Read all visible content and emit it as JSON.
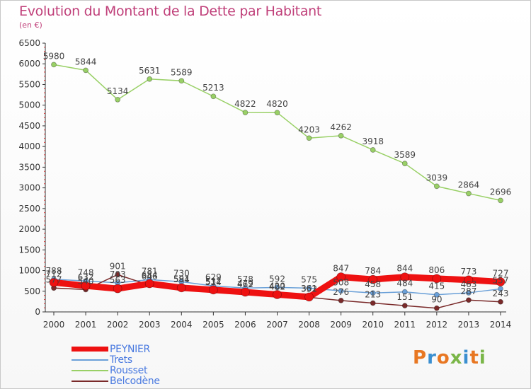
{
  "header": {
    "title": "Evolution du Montant de la Dette par Habitant",
    "subtitle": "(en €)"
  },
  "logo": {
    "letters": [
      "P",
      "r",
      "o",
      "x",
      "i",
      "t",
      "i"
    ],
    "colors": [
      "#e87722",
      "#3a8fd0",
      "#e87722",
      "#7ab648",
      "#3a8fd0",
      "#e87722",
      "#7ab648"
    ]
  },
  "chart_data": {
    "type": "line",
    "x": [
      "2000",
      "2001",
      "2002",
      "2003",
      "2004",
      "2005",
      "2006",
      "2007",
      "2008",
      "2009",
      "2010",
      "2011",
      "2012",
      "2013",
      "2014"
    ],
    "ylim": [
      0,
      6500
    ],
    "yticks": [
      "0",
      "500",
      "1000",
      "1500",
      "2000",
      "2500",
      "3000",
      "3500",
      "4000",
      "4500",
      "5000",
      "5500",
      "6000",
      "6500"
    ],
    "grid": false,
    "legend_position": "bottom-left",
    "series": [
      {
        "name": "PEYNIER",
        "color": "#ee1111",
        "values": [
          712,
          632,
          563,
          684,
          584,
          532,
          479,
          420,
          361,
          847,
          784,
          844,
          806,
          773,
          727
        ],
        "labels": [
          "712",
          "632",
          "563",
          "684",
          "584",
          "532",
          "479",
          "420",
          "361",
          "847",
          "784",
          "844",
          "806",
          "773",
          "727"
        ]
      },
      {
        "name": "Trets",
        "color": "#6aa0d8",
        "values": [
          788,
          748,
          703,
          781,
          730,
          629,
          578,
          592,
          575,
          508,
          458,
          484,
          415,
          463,
          557
        ],
        "labels": [
          "788",
          "748",
          "703",
          "781",
          "730",
          "629",
          "578",
          "592",
          "575",
          "508",
          "458",
          "484",
          "415",
          "463",
          "557"
        ]
      },
      {
        "name": "Rousset",
        "color": "#99d066",
        "values": [
          5980,
          5844,
          5134,
          5631,
          5589,
          5213,
          4822,
          4820,
          4203,
          4262,
          3918,
          3589,
          3039,
          2864,
          2696
        ],
        "labels": [
          "5980",
          "5844",
          "5134",
          "5631",
          "5589",
          "5213",
          "4822",
          "4820",
          "4203",
          "4262",
          "3918",
          "3589",
          "3039",
          "2864",
          "2696"
        ]
      },
      {
        "name": "Belcodène",
        "color": "#7a2a2a",
        "values": [
          577,
          540,
          901,
          646,
          591,
          514,
          462,
          402,
          352,
          276,
          213,
          151,
          90,
          287,
          243
        ],
        "labels": [
          "577",
          "540",
          "901",
          "646",
          "591",
          "514",
          "462",
          "402",
          "352",
          "276",
          "213",
          "151",
          "90",
          "287",
          "243"
        ]
      }
    ]
  }
}
